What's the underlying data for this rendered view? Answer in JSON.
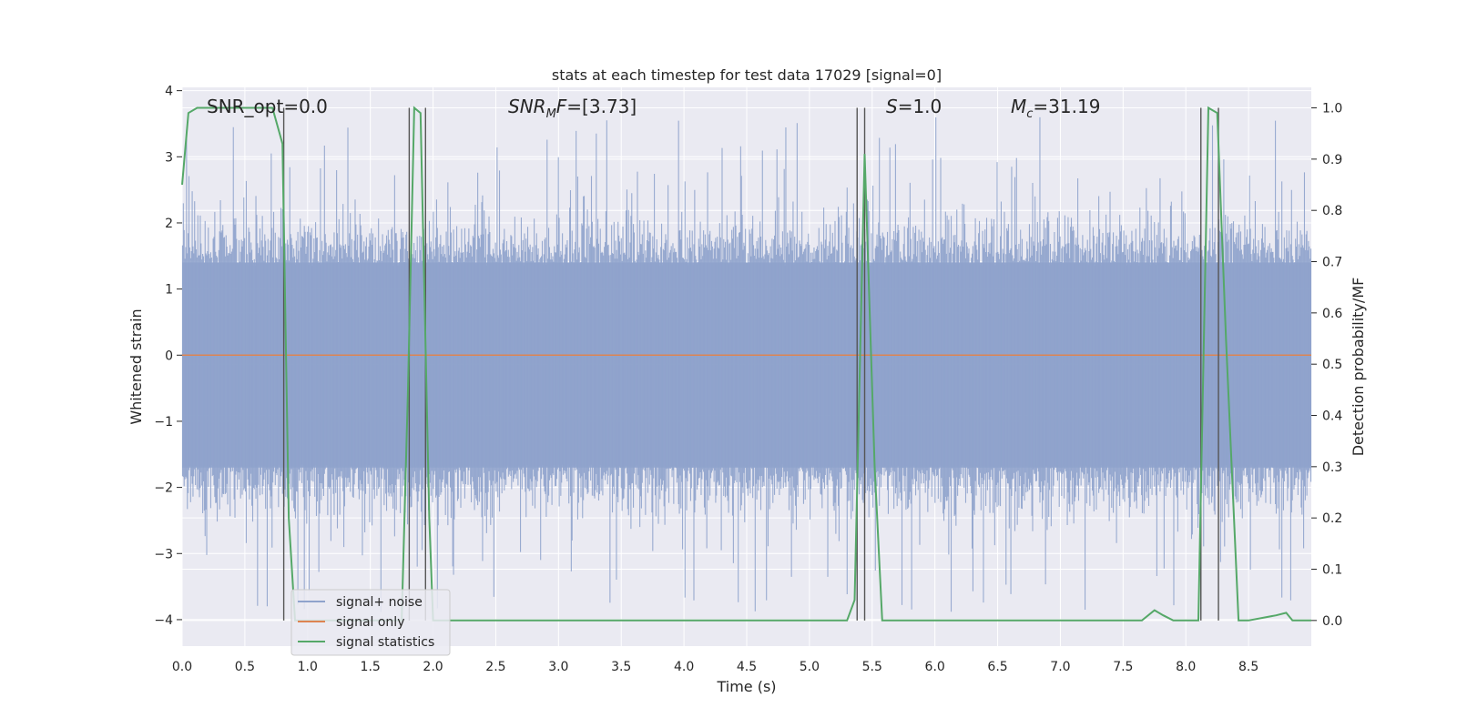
{
  "chart_data": {
    "type": "line",
    "title": "stats at each timestep for test data 17029 [signal=0]",
    "xlabel": "Time (s)",
    "ylabel_left": "Whitened strain",
    "ylabel_right": "Detection probability/MF",
    "xlim": [
      0,
      9.0
    ],
    "ylim_left": [
      -4.4,
      4.05
    ],
    "ylim_right": [
      -0.05,
      1.04
    ],
    "x_ticks": [
      "0.0",
      "0.5",
      "1.0",
      "1.5",
      "2.0",
      "2.5",
      "3.0",
      "3.5",
      "4.0",
      "4.5",
      "5.0",
      "5.5",
      "6.0",
      "6.5",
      "7.0",
      "7.5",
      "8.0",
      "8.5"
    ],
    "y_left_ticks": [
      "4",
      "3",
      "2",
      "1",
      "0",
      "−1",
      "−2",
      "−3",
      "−4"
    ],
    "y_right_ticks": [
      "1.0",
      "0.9",
      "0.8",
      "0.7",
      "0.6",
      "0.5",
      "0.4",
      "0.3",
      "0.2",
      "0.1",
      "0.0"
    ],
    "grid": true,
    "legend_position": "lower-left",
    "annotations": [
      {
        "text": "SNR_opt=0.0",
        "x": 0.2,
        "y_right": 1.0
      },
      {
        "text": "SNR_MF=[3.73]",
        "x": 2.6,
        "y_right": 1.0
      },
      {
        "text": "S=1.0",
        "x": 5.6,
        "y_right": 1.0
      },
      {
        "text": "M_c=31.19",
        "x": 6.6,
        "y_right": 1.0
      }
    ],
    "vertical_lines_x": [
      0.81,
      1.81,
      1.94,
      5.38,
      5.44,
      8.12,
      8.26
    ],
    "series": [
      {
        "name": "signal+ noise",
        "axis": "left",
        "color": "#8fa3cc",
        "description_envelope": {
          "typical_range": [
            -1.7,
            1.4
          ],
          "peak_max": 3.6,
          "peak_min": -4.0
        }
      },
      {
        "name": "signal only",
        "axis": "left",
        "color": "#dd8452",
        "x": [
          0,
          9.0
        ],
        "y": [
          0,
          0
        ]
      },
      {
        "name": "signal statistics",
        "axis": "right",
        "color": "#55a868",
        "x": [
          0,
          0.05,
          0.12,
          0.6,
          0.72,
          0.8,
          0.85,
          0.9,
          1.75,
          1.8,
          1.85,
          1.9,
          1.97,
          2.0,
          2.05,
          5.3,
          5.36,
          5.44,
          5.52,
          5.58,
          7.65,
          7.75,
          7.82,
          7.9,
          8.1,
          8.18,
          8.25,
          8.32,
          8.42,
          8.5,
          8.72,
          8.8,
          8.85,
          9.0
        ],
        "y": [
          0.85,
          0.99,
          1.0,
          1.0,
          1.0,
          0.93,
          0.2,
          0.0,
          0.0,
          0.45,
          1.0,
          0.99,
          0.2,
          0.0,
          0.0,
          0.0,
          0.04,
          0.91,
          0.3,
          0.0,
          0.0,
          0.02,
          0.01,
          0.0,
          0.0,
          1.0,
          0.99,
          0.55,
          0.0,
          0.0,
          0.01,
          0.015,
          0.0,
          0.0
        ]
      }
    ]
  },
  "ui": {
    "annot_snr_opt": "SNR_opt=0.0",
    "annot_snr_mf_base": "SNR",
    "annot_snr_mf_sub": "M",
    "annot_snr_mf_rest": "F=[3.73]",
    "annot_s_var": "S",
    "annot_s_rest": "=1.0",
    "annot_mc_var": "M",
    "annot_mc_sub": "c",
    "annot_mc_rest": "=31.19",
    "legend_1": "signal+ noise",
    "legend_2": "signal only",
    "legend_3": "signal statistics",
    "bg_color": "#eaeaf2",
    "grid_color": "#ffffff"
  }
}
